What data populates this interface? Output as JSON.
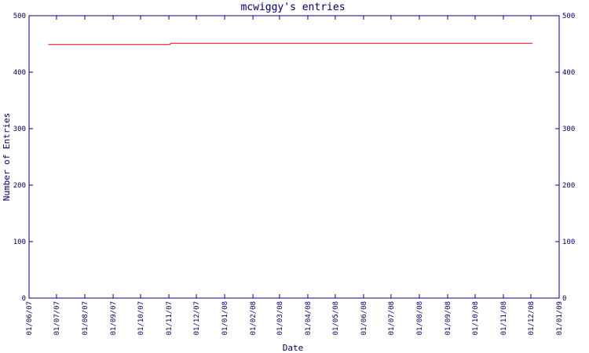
{
  "chart_data": {
    "type": "line",
    "title": "mcwiggy's entries",
    "x_label": "Date",
    "y_label": "Number of Entries",
    "series": [
      {
        "name": "entries",
        "color": "#ff0000",
        "x": [
          "22/06/07",
          "02/11/07",
          "03/11/07",
          "03/12/08"
        ],
        "values": [
          449,
          449,
          451,
          451
        ]
      }
    ],
    "xlim": [
      "01/06/07",
      "01/01/09"
    ],
    "xticks": [
      "01/06/07",
      "01/07/07",
      "01/08/07",
      "01/09/07",
      "01/10/07",
      "01/11/07",
      "01/12/07",
      "01/01/08",
      "01/02/08",
      "01/03/08",
      "01/04/08",
      "01/05/08",
      "01/06/08",
      "01/07/08",
      "01/08/08",
      "01/09/08",
      "01/10/08",
      "01/11/08",
      "01/12/08",
      "01/01/09"
    ],
    "ylim": [
      0,
      500
    ],
    "yticks": [
      0,
      100,
      200,
      300,
      400,
      500
    ],
    "axis_color": "#000080"
  }
}
